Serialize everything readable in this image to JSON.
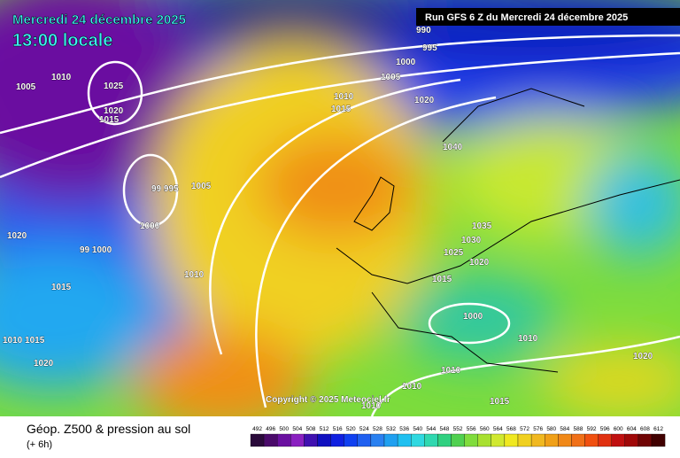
{
  "header": {
    "date": "Mercredi 24 décembre 2025",
    "time": "13:00 locale",
    "run": "Run GFS 6 Z du Mercredi 24 décembre 2025"
  },
  "copyright": "Copyright © 2025 Meteociel.fr",
  "footer": {
    "title": "Géop. Z500 & pression au sol",
    "step": "(+ 6h)"
  },
  "scale": [
    492,
    496,
    500,
    504,
    508,
    512,
    516,
    520,
    524,
    528,
    532,
    536,
    540,
    544,
    548,
    552,
    556,
    560,
    564,
    568,
    572,
    576,
    580,
    584,
    588,
    592,
    596,
    600,
    604,
    608,
    612
  ],
  "isobars": [
    "990",
    "995",
    "1000",
    "1005",
    "1010",
    "1015",
    "1020",
    "1005",
    "1010",
    "1025",
    "1020",
    "1015",
    "99 995",
    "1005",
    "1000",
    "99 1000",
    "1020",
    "1015",
    "1010",
    "1040",
    "1035",
    "1030",
    "1025",
    "1020",
    "1015",
    "1000",
    "1010",
    "1010",
    "1010",
    "1015",
    "1010",
    "1020",
    "1010 1015",
    "1020"
  ]
}
